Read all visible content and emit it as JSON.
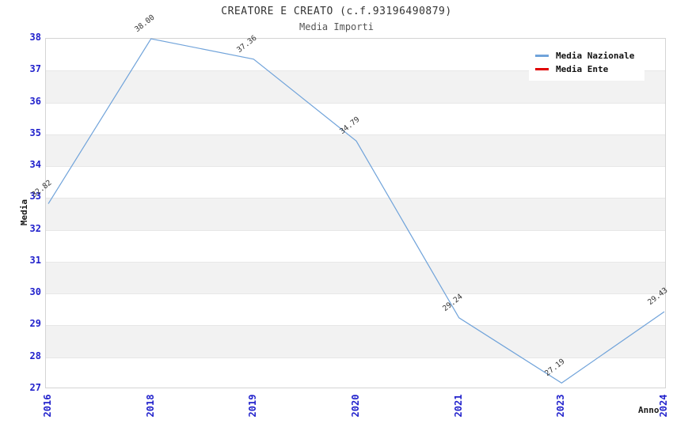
{
  "title": "CREATORE E CREATO (c.f.93196490879)",
  "subtitle": "Media Importi",
  "chart_data": {
    "type": "line",
    "categories": [
      "2016",
      "2018",
      "2019",
      "2020",
      "2021",
      "2023",
      "2024"
    ],
    "series": [
      {
        "name": "Media Nazionale",
        "color": "#70a3da",
        "values": [
          32.82,
          38.0,
          37.36,
          34.79,
          29.24,
          27.19,
          29.43
        ]
      },
      {
        "name": "Media Ente",
        "color": "#e00000",
        "values": []
      }
    ],
    "point_labels": [
      "32.82",
      "38.00",
      "37.36",
      "34.79",
      "29.24",
      "27.19",
      "29.43"
    ],
    "xlabel": "Anno",
    "ylabel": "Media",
    "ylim": [
      27,
      38
    ],
    "yticks": [
      27,
      28,
      29,
      30,
      31,
      32,
      33,
      34,
      35,
      36,
      37,
      38
    ],
    "grid": "horizontal-alternating-bands",
    "band_colors": [
      "#ffffff",
      "#f2f2f2"
    ],
    "legend_position": "top-right",
    "tick_label_color": "#2222cc"
  }
}
